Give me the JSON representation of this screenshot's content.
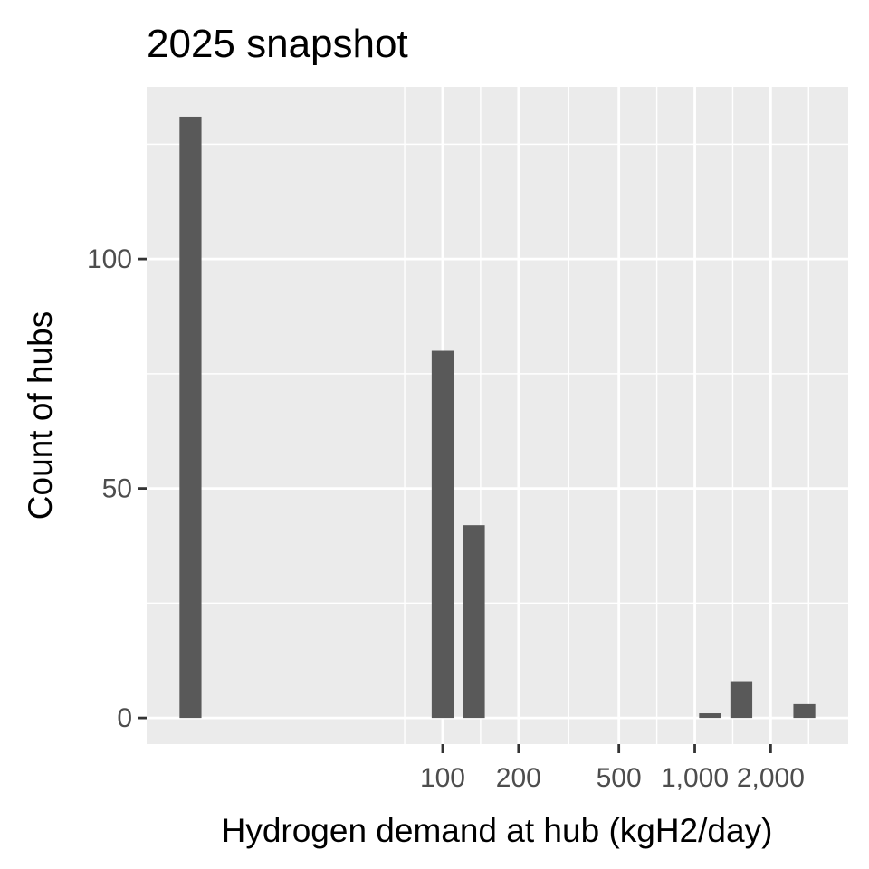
{
  "chart_data": {
    "type": "bar",
    "title": "2025 snapshot",
    "xlabel": "Hydrogen demand at hub (kgH2/day)",
    "ylabel": "Count of hubs",
    "x_scale": "log10",
    "x_ticks": [
      {
        "value": 100,
        "label": "100"
      },
      {
        "value": 200,
        "label": "200"
      },
      {
        "value": 500,
        "label": "500"
      },
      {
        "value": 1000,
        "label": "1,000"
      },
      {
        "value": 2000,
        "label": "2,000"
      }
    ],
    "y_ticks": [
      {
        "value": 0,
        "label": "0"
      },
      {
        "value": 50,
        "label": "50"
      },
      {
        "value": 100,
        "label": "100"
      }
    ],
    "ylim": [
      -5.7,
      137.5
    ],
    "grid": true,
    "bar_color": "#595959",
    "panel_color": "#ebebeb",
    "bins": [
      {
        "x": 10,
        "count": 131
      },
      {
        "x": 100,
        "count": 80
      },
      {
        "x": 133,
        "count": 42
      },
      {
        "x": 1150,
        "count": 1
      },
      {
        "x": 1530,
        "count": 8
      },
      {
        "x": 2720,
        "count": 3
      }
    ]
  }
}
